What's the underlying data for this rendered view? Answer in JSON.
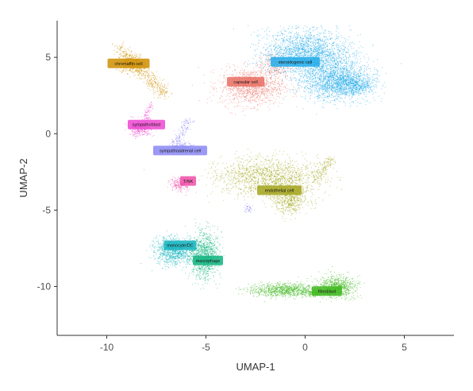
{
  "chart_data": {
    "type": "scatter",
    "xlabel": "UMAP-1",
    "ylabel": "UMAP-2",
    "xlim": [
      -12.5,
      7.5
    ],
    "ylim": [
      -13.2,
      7.4
    ],
    "x_ticks": [
      -10,
      -5,
      0,
      5
    ],
    "y_ticks": [
      -10,
      -5,
      0,
      5
    ],
    "x_tick_labels": [
      "-10",
      "-5",
      "0",
      "5"
    ],
    "y_tick_labels": [
      "-10",
      "-5",
      "0",
      "5"
    ],
    "grid": false,
    "legend": "none",
    "clusters": [
      {
        "name": "chromaffin cell",
        "color": "#cf8e00",
        "label_x": -8.9,
        "label_y": 4.6
      },
      {
        "name": "capsular cell",
        "color": "#ea6f63",
        "label_x": -3.0,
        "label_y": 3.4
      },
      {
        "name": "steroidogenic cell",
        "color": "#22abe9",
        "label_x": -0.5,
        "label_y": 4.7
      },
      {
        "name": "sympathoblast",
        "color": "#ee49d2",
        "label_x": -8.0,
        "label_y": 0.6
      },
      {
        "name": "sympathoadrenal cell",
        "color": "#8a87f3",
        "label_x": -6.3,
        "label_y": -1.1
      },
      {
        "name": "T/NK",
        "color": "#f04fa8",
        "label_x": -5.9,
        "label_y": -3.1
      },
      {
        "name": "endothelial cell",
        "color": "#a3a51c",
        "label_x": -1.3,
        "label_y": -3.7
      },
      {
        "name": "monocyte/DC",
        "color": "#12b3be",
        "label_x": -6.3,
        "label_y": -7.3
      },
      {
        "name": "macrophage",
        "color": "#10b47e",
        "label_x": -4.9,
        "label_y": -8.3
      },
      {
        "name": "fibroblast",
        "color": "#40b81f",
        "label_x": 1.1,
        "label_y": -10.3
      }
    ]
  }
}
